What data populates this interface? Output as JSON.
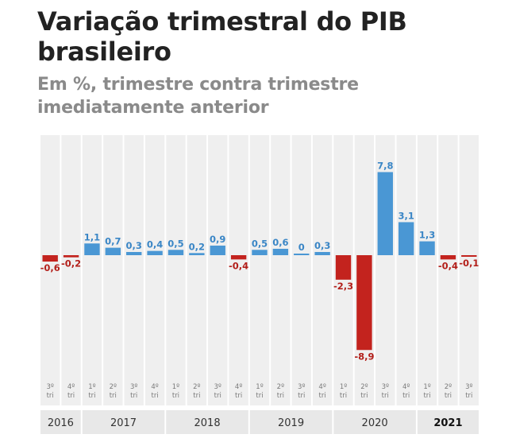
{
  "header": {
    "title": "Variação trimestral do PIB brasileiro",
    "subtitle": "Em %, trimestre contra trimestre imediatamente anterior"
  },
  "colors": {
    "positive": "#4a97d4",
    "negative": "#c3231e",
    "positive_label": "#3a86c6",
    "negative_label": "#b3201b",
    "column_bg": "#efefef",
    "year_bg": "#e8e8e8"
  },
  "chart_data": {
    "type": "bar",
    "title": "Variação trimestral do PIB brasileiro",
    "subtitle": "Em %, trimestre contra trimestre imediatamente anterior",
    "categories": [
      "3º tri",
      "4º tri",
      "1º tri",
      "2º tri",
      "3º tri",
      "4º tri",
      "1º tri",
      "2º tri",
      "3º tri",
      "4º tri",
      "1º tri",
      "2º tri",
      "3º tri",
      "4º tri",
      "1º tri",
      "2º tri",
      "3º tri",
      "4º tri",
      "1º tri",
      "2º tri",
      "3º tri"
    ],
    "quarter_labels": [
      [
        "3º",
        "tri"
      ],
      [
        "4º",
        "tri"
      ],
      [
        "1º",
        "tri"
      ],
      [
        "2º",
        "tri"
      ],
      [
        "3º",
        "tri"
      ],
      [
        "4º",
        "tri"
      ],
      [
        "1º",
        "tri"
      ],
      [
        "2º",
        "tri"
      ],
      [
        "3º",
        "tri"
      ],
      [
        "4º",
        "tri"
      ],
      [
        "1º",
        "tri"
      ],
      [
        "2º",
        "tri"
      ],
      [
        "3º",
        "tri"
      ],
      [
        "4º",
        "tri"
      ],
      [
        "1º",
        "tri"
      ],
      [
        "2º",
        "tri"
      ],
      [
        "3º",
        "tri"
      ],
      [
        "4º",
        "tri"
      ],
      [
        "1º",
        "tri"
      ],
      [
        "2º",
        "tri"
      ],
      [
        "3º",
        "tri"
      ]
    ],
    "values": [
      -0.6,
      -0.2,
      1.1,
      0.7,
      0.3,
      0.4,
      0.5,
      0.2,
      0.9,
      -0.4,
      0.5,
      0.6,
      0,
      0.3,
      -2.3,
      -8.9,
      7.8,
      3.1,
      1.3,
      -0.4,
      -0.1
    ],
    "value_labels": [
      "-0,6",
      "-0,2",
      "1,1",
      "0,7",
      "0,3",
      "0,4",
      "0,5",
      "0,2",
      "0,9",
      "-0,4",
      "0,5",
      "0,6",
      "0",
      "0,3",
      "-2,3",
      "-8,9",
      "7,8",
      "3,1",
      "1,3",
      "-0,4",
      "-0,1"
    ],
    "years": [
      {
        "label": "2016",
        "quarters": 2,
        "bold": false
      },
      {
        "label": "2017",
        "quarters": 4,
        "bold": false
      },
      {
        "label": "2018",
        "quarters": 4,
        "bold": false
      },
      {
        "label": "2019",
        "quarters": 4,
        "bold": false
      },
      {
        "label": "2020",
        "quarters": 4,
        "bold": false
      },
      {
        "label": "2021",
        "quarters": 3,
        "bold": true
      }
    ],
    "ylim": [
      -8.9,
      7.8
    ],
    "grid": false,
    "legend": "none",
    "xlabel": "",
    "ylabel": ""
  }
}
